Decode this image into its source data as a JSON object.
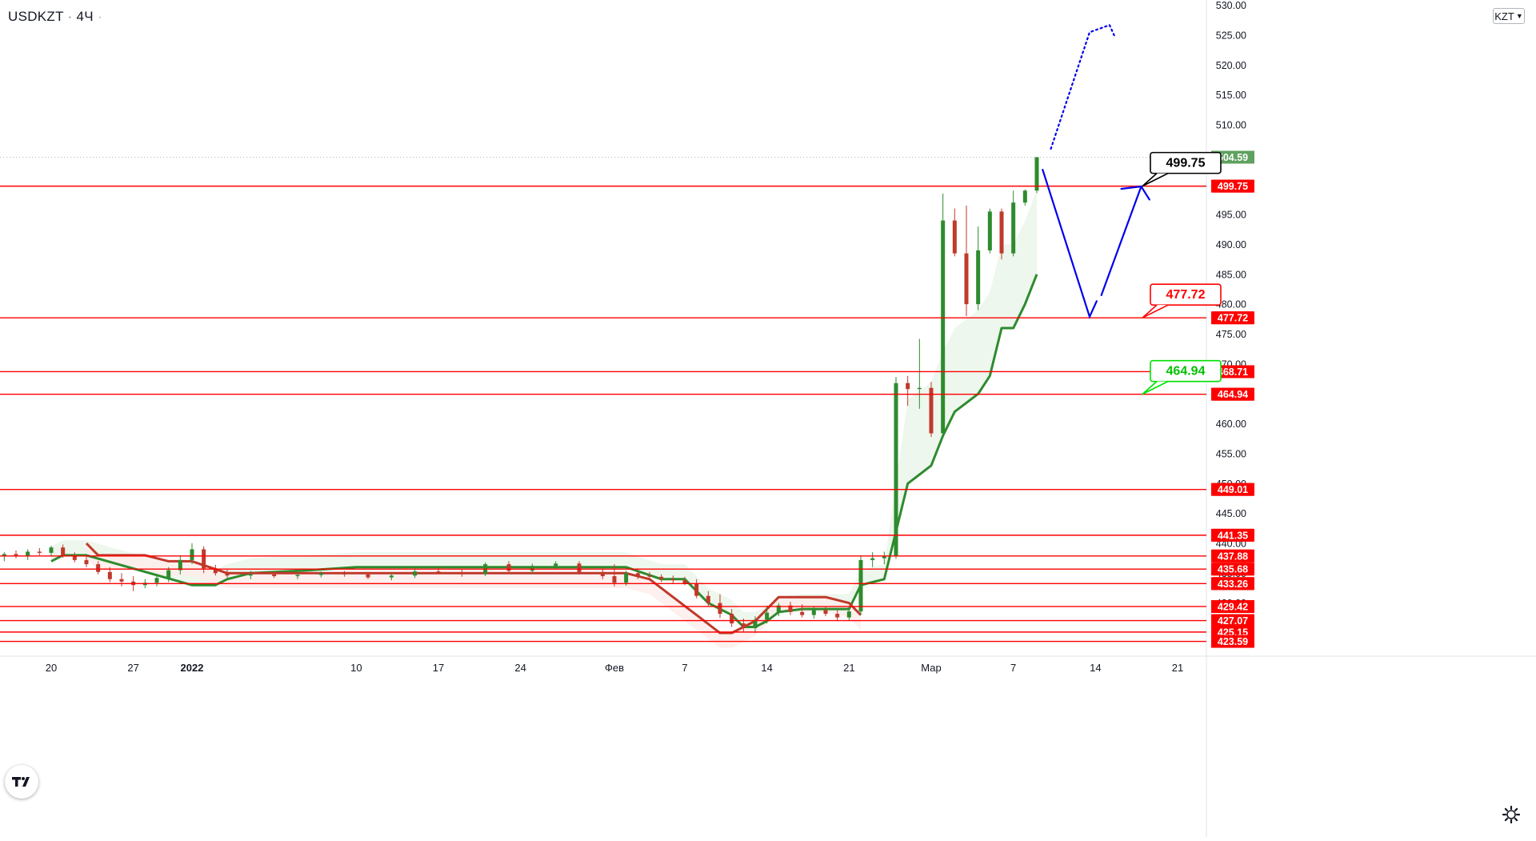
{
  "header": {
    "symbol": "USDKZT",
    "interval": "4Ч",
    "currency": "KZT"
  },
  "colors": {
    "level_line": "#ff0000",
    "support_line": "#2e8b2e",
    "resistance_line": "#c0392b",
    "projection": "#0000ee",
    "last_price_bg": "#5fa15f",
    "up_candle": "#2e8b2e",
    "down_candle": "#c0392b"
  },
  "chart_data": {
    "type": "candlestick",
    "title": "",
    "ylim": [
      421,
      530
    ],
    "y_ticks": [
      "425.00",
      "430.00",
      "435.00",
      "440.00",
      "445.00",
      "450.00",
      "455.00",
      "460.00",
      "465.00",
      "470.00",
      "475.00",
      "480.00",
      "485.00",
      "490.00",
      "495.00",
      "500.00",
      "505.00",
      "510.00",
      "515.00",
      "520.00",
      "525.00",
      "530.00"
    ],
    "x_ticks": [
      {
        "label": "20",
        "t": 14
      },
      {
        "label": "27",
        "t": 21
      },
      {
        "label": "2022",
        "t": 26,
        "bold": true
      },
      {
        "label": "10",
        "t": 40
      },
      {
        "label": "17",
        "t": 47
      },
      {
        "label": "24",
        "t": 54
      },
      {
        "label": "Фев",
        "t": 62
      },
      {
        "label": "7",
        "t": 68
      },
      {
        "label": "14",
        "t": 75
      },
      {
        "label": "21",
        "t": 82
      },
      {
        "label": "Мар",
        "t": 89
      },
      {
        "label": "7",
        "t": 96
      },
      {
        "label": "14",
        "t": 103
      },
      {
        "label": "21",
        "t": 110
      }
    ],
    "horizontal_levels": [
      499.75,
      477.72,
      468.71,
      464.94,
      449.01,
      441.35,
      437.88,
      435.68,
      433.26,
      429.42,
      427.07,
      425.15,
      423.59
    ],
    "last_price": 504.59,
    "callouts": [
      {
        "label": "499.75",
        "value": 499.75,
        "style": "black"
      },
      {
        "label": "477.72",
        "value": 477.72,
        "style": "red"
      },
      {
        "label": "464.94",
        "value": 464.94,
        "style": "green"
      }
    ],
    "trend_band": {
      "support": [
        [
          14,
          437
        ],
        [
          15,
          438
        ],
        [
          16,
          438
        ],
        [
          17,
          438
        ],
        [
          26,
          433
        ],
        [
          28,
          433
        ],
        [
          29,
          434
        ],
        [
          31,
          435
        ],
        [
          36,
          435.5
        ],
        [
          40,
          436
        ],
        [
          46,
          436
        ],
        [
          60,
          436
        ],
        [
          63,
          436
        ],
        [
          66,
          434
        ],
        [
          68,
          434
        ],
        [
          70,
          430
        ],
        [
          72,
          428
        ],
        [
          73,
          426
        ],
        [
          74,
          426
        ],
        [
          75,
          427
        ],
        [
          76,
          428.5
        ],
        [
          78,
          429
        ],
        [
          80,
          429
        ],
        [
          82,
          429
        ],
        [
          83,
          433
        ],
        [
          85,
          434
        ],
        [
          87,
          450
        ],
        [
          89,
          453
        ],
        [
          90,
          458
        ],
        [
          91,
          462
        ],
        [
          93,
          465
        ],
        [
          94,
          468
        ],
        [
          95,
          476
        ],
        [
          96,
          476
        ],
        [
          97,
          480
        ],
        [
          98,
          485
        ]
      ],
      "resistance": [
        [
          17,
          440
        ],
        [
          18,
          438
        ],
        [
          22,
          438
        ],
        [
          24,
          437
        ],
        [
          26,
          437
        ],
        [
          29,
          435
        ],
        [
          31,
          435
        ],
        [
          63,
          435
        ],
        [
          65,
          434
        ],
        [
          67,
          431
        ],
        [
          69,
          428
        ],
        [
          71,
          425
        ],
        [
          72,
          425
        ],
        [
          74,
          427
        ],
        [
          76,
          431
        ],
        [
          78,
          431
        ],
        [
          80,
          431
        ],
        [
          82,
          430
        ],
        [
          83,
          428
        ]
      ]
    },
    "candles": [
      {
        "t": 10,
        "o": 437.9,
        "h": 438.5,
        "l": 437.0,
        "c": 438.2
      },
      {
        "t": 11,
        "o": 438.2,
        "h": 438.8,
        "l": 437.5,
        "c": 437.8
      },
      {
        "t": 12,
        "o": 437.8,
        "h": 439.0,
        "l": 437.2,
        "c": 438.6
      },
      {
        "t": 13,
        "o": 438.6,
        "h": 439.2,
        "l": 438.0,
        "c": 438.4
      },
      {
        "t": 14,
        "o": 438.4,
        "h": 439.6,
        "l": 437.8,
        "c": 439.3
      },
      {
        "t": 15,
        "o": 439.3,
        "h": 439.8,
        "l": 437.6,
        "c": 437.9
      },
      {
        "t": 16,
        "o": 437.9,
        "h": 438.5,
        "l": 436.8,
        "c": 437.2
      },
      {
        "t": 17,
        "o": 437.2,
        "h": 438.0,
        "l": 436.0,
        "c": 436.5
      },
      {
        "t": 18,
        "o": 436.5,
        "h": 437.0,
        "l": 434.8,
        "c": 435.2
      },
      {
        "t": 19,
        "o": 435.2,
        "h": 436.0,
        "l": 433.5,
        "c": 434.0
      },
      {
        "t": 20,
        "o": 434.0,
        "h": 435.0,
        "l": 432.8,
        "c": 433.6
      },
      {
        "t": 21,
        "o": 433.6,
        "h": 434.5,
        "l": 432.0,
        "c": 433.0
      },
      {
        "t": 22,
        "o": 433.0,
        "h": 434.0,
        "l": 432.5,
        "c": 433.4
      },
      {
        "t": 23,
        "o": 433.4,
        "h": 434.8,
        "l": 432.8,
        "c": 434.2
      },
      {
        "t": 24,
        "o": 434.2,
        "h": 436.0,
        "l": 433.5,
        "c": 435.5
      },
      {
        "t": 25,
        "o": 435.5,
        "h": 438.0,
        "l": 434.8,
        "c": 437.2
      },
      {
        "t": 26,
        "o": 437.2,
        "h": 440.0,
        "l": 436.5,
        "c": 439.0
      },
      {
        "t": 27,
        "o": 439.0,
        "h": 439.5,
        "l": 435.0,
        "c": 435.8
      },
      {
        "t": 28,
        "o": 435.8,
        "h": 436.4,
        "l": 434.6,
        "c": 435.0
      },
      {
        "t": 29,
        "o": 435.0,
        "h": 435.6,
        "l": 434.2,
        "c": 434.6
      },
      {
        "t": 31,
        "o": 434.6,
        "h": 435.4,
        "l": 434.0,
        "c": 434.8
      },
      {
        "t": 33,
        "o": 434.8,
        "h": 435.2,
        "l": 434.2,
        "c": 434.5
      },
      {
        "t": 35,
        "o": 434.5,
        "h": 435.0,
        "l": 434.0,
        "c": 434.7
      },
      {
        "t": 37,
        "o": 434.7,
        "h": 435.3,
        "l": 434.3,
        "c": 435.0
      },
      {
        "t": 39,
        "o": 435.0,
        "h": 435.4,
        "l": 434.4,
        "c": 434.8
      },
      {
        "t": 41,
        "o": 434.8,
        "h": 435.2,
        "l": 434.0,
        "c": 434.3
      },
      {
        "t": 43,
        "o": 434.3,
        "h": 435.0,
        "l": 433.8,
        "c": 434.6
      },
      {
        "t": 45,
        "o": 434.6,
        "h": 435.8,
        "l": 434.2,
        "c": 435.3
      },
      {
        "t": 47,
        "o": 435.3,
        "h": 436.0,
        "l": 434.8,
        "c": 435.0
      },
      {
        "t": 49,
        "o": 435.0,
        "h": 435.6,
        "l": 434.4,
        "c": 434.9
      },
      {
        "t": 51,
        "o": 434.9,
        "h": 436.8,
        "l": 434.5,
        "c": 436.5
      },
      {
        "t": 53,
        "o": 436.5,
        "h": 437.0,
        "l": 435.0,
        "c": 435.4
      },
      {
        "t": 55,
        "o": 435.4,
        "h": 436.6,
        "l": 435.0,
        "c": 436.2
      },
      {
        "t": 57,
        "o": 436.2,
        "h": 437.0,
        "l": 435.6,
        "c": 436.6
      },
      {
        "t": 59,
        "o": 436.6,
        "h": 437.0,
        "l": 434.8,
        "c": 435.2
      },
      {
        "t": 61,
        "o": 435.2,
        "h": 435.8,
        "l": 434.0,
        "c": 434.5
      },
      {
        "t": 62,
        "o": 434.5,
        "h": 436.5,
        "l": 432.8,
        "c": 433.4
      },
      {
        "t": 63,
        "o": 433.4,
        "h": 435.4,
        "l": 432.9,
        "c": 435.0
      },
      {
        "t": 64,
        "o": 435.0,
        "h": 435.8,
        "l": 434.0,
        "c": 434.6
      },
      {
        "t": 65,
        "o": 434.6,
        "h": 435.2,
        "l": 433.8,
        "c": 434.4
      },
      {
        "t": 66,
        "o": 434.4,
        "h": 434.8,
        "l": 433.5,
        "c": 434.0
      },
      {
        "t": 67,
        "o": 434.0,
        "h": 434.6,
        "l": 433.2,
        "c": 433.8
      },
      {
        "t": 68,
        "o": 433.8,
        "h": 434.4,
        "l": 433.0,
        "c": 433.2
      },
      {
        "t": 69,
        "o": 433.2,
        "h": 434.0,
        "l": 430.8,
        "c": 431.2
      },
      {
        "t": 70,
        "o": 431.2,
        "h": 432.0,
        "l": 429.5,
        "c": 430.0
      },
      {
        "t": 71,
        "o": 430.0,
        "h": 431.5,
        "l": 427.5,
        "c": 428.2
      },
      {
        "t": 72,
        "o": 428.2,
        "h": 429.0,
        "l": 426.0,
        "c": 426.6
      },
      {
        "t": 73,
        "o": 426.6,
        "h": 427.4,
        "l": 425.2,
        "c": 425.8
      },
      {
        "t": 74,
        "o": 425.8,
        "h": 427.8,
        "l": 425.0,
        "c": 427.2
      },
      {
        "t": 75,
        "o": 427.2,
        "h": 429.6,
        "l": 426.6,
        "c": 428.4
      },
      {
        "t": 76,
        "o": 428.4,
        "h": 430.0,
        "l": 427.8,
        "c": 429.6
      },
      {
        "t": 77,
        "o": 429.6,
        "h": 430.2,
        "l": 428.0,
        "c": 428.5
      },
      {
        "t": 78,
        "o": 428.5,
        "h": 429.8,
        "l": 427.6,
        "c": 428.0
      },
      {
        "t": 79,
        "o": 428.0,
        "h": 429.5,
        "l": 427.4,
        "c": 428.8
      },
      {
        "t": 80,
        "o": 428.8,
        "h": 429.4,
        "l": 427.8,
        "c": 428.2
      },
      {
        "t": 81,
        "o": 428.2,
        "h": 428.8,
        "l": 427.0,
        "c": 427.6
      },
      {
        "t": 82,
        "o": 427.6,
        "h": 429.2,
        "l": 427.0,
        "c": 428.6
      },
      {
        "t": 83,
        "o": 428.6,
        "h": 438.0,
        "l": 428.0,
        "c": 437.2
      },
      {
        "t": 84,
        "o": 437.2,
        "h": 438.5,
        "l": 436.0,
        "c": 437.5
      },
      {
        "t": 85,
        "o": 437.5,
        "h": 438.6,
        "l": 436.5,
        "c": 437.9
      },
      {
        "t": 86,
        "o": 437.9,
        "h": 467.8,
        "l": 437.4,
        "c": 466.8
      },
      {
        "t": 87,
        "o": 466.8,
        "h": 468.0,
        "l": 463.0,
        "c": 465.8
      },
      {
        "t": 88,
        "o": 465.8,
        "h": 474.2,
        "l": 462.5,
        "c": 466.0
      },
      {
        "t": 89,
        "o": 466.0,
        "h": 467.0,
        "l": 457.8,
        "c": 458.4
      },
      {
        "t": 90,
        "o": 458.4,
        "h": 498.5,
        "l": 458.0,
        "c": 494.0
      },
      {
        "t": 91,
        "o": 494.0,
        "h": 496.0,
        "l": 488.0,
        "c": 488.5
      },
      {
        "t": 92,
        "o": 488.5,
        "h": 496.5,
        "l": 478.0,
        "c": 480.0
      },
      {
        "t": 93,
        "o": 480.0,
        "h": 493.0,
        "l": 479.0,
        "c": 489.0
      },
      {
        "t": 94,
        "o": 489.0,
        "h": 496.0,
        "l": 488.5,
        "c": 495.5
      },
      {
        "t": 95,
        "o": 495.5,
        "h": 496.0,
        "l": 487.5,
        "c": 488.5
      },
      {
        "t": 96,
        "o": 488.5,
        "h": 499.0,
        "l": 488.0,
        "c": 497.0
      },
      {
        "t": 97,
        "o": 497.0,
        "h": 499.2,
        "l": 496.5,
        "c": 499.0
      },
      {
        "t": 98,
        "o": 499.0,
        "h": 504.6,
        "l": 498.6,
        "c": 504.59
      }
    ],
    "projections": [
      {
        "style": "solid",
        "points": [
          [
            98.5,
            502.5
          ],
          [
            102.5,
            477.9
          ],
          [
            103.1,
            480.5
          ]
        ]
      },
      {
        "style": "solid",
        "points": [
          [
            103.5,
            481.5
          ],
          [
            106.9,
            499.7
          ],
          [
            105.2,
            499.3
          ]
        ]
      },
      {
        "style": "solid",
        "points": [
          [
            106.9,
            499.7
          ],
          [
            107.6,
            497.5
          ]
        ]
      },
      {
        "style": "dotted",
        "points": [
          [
            99.2,
            506
          ],
          [
            102.5,
            525.5
          ],
          [
            104.2,
            526.7
          ],
          [
            104.7,
            524.5
          ]
        ]
      }
    ]
  }
}
